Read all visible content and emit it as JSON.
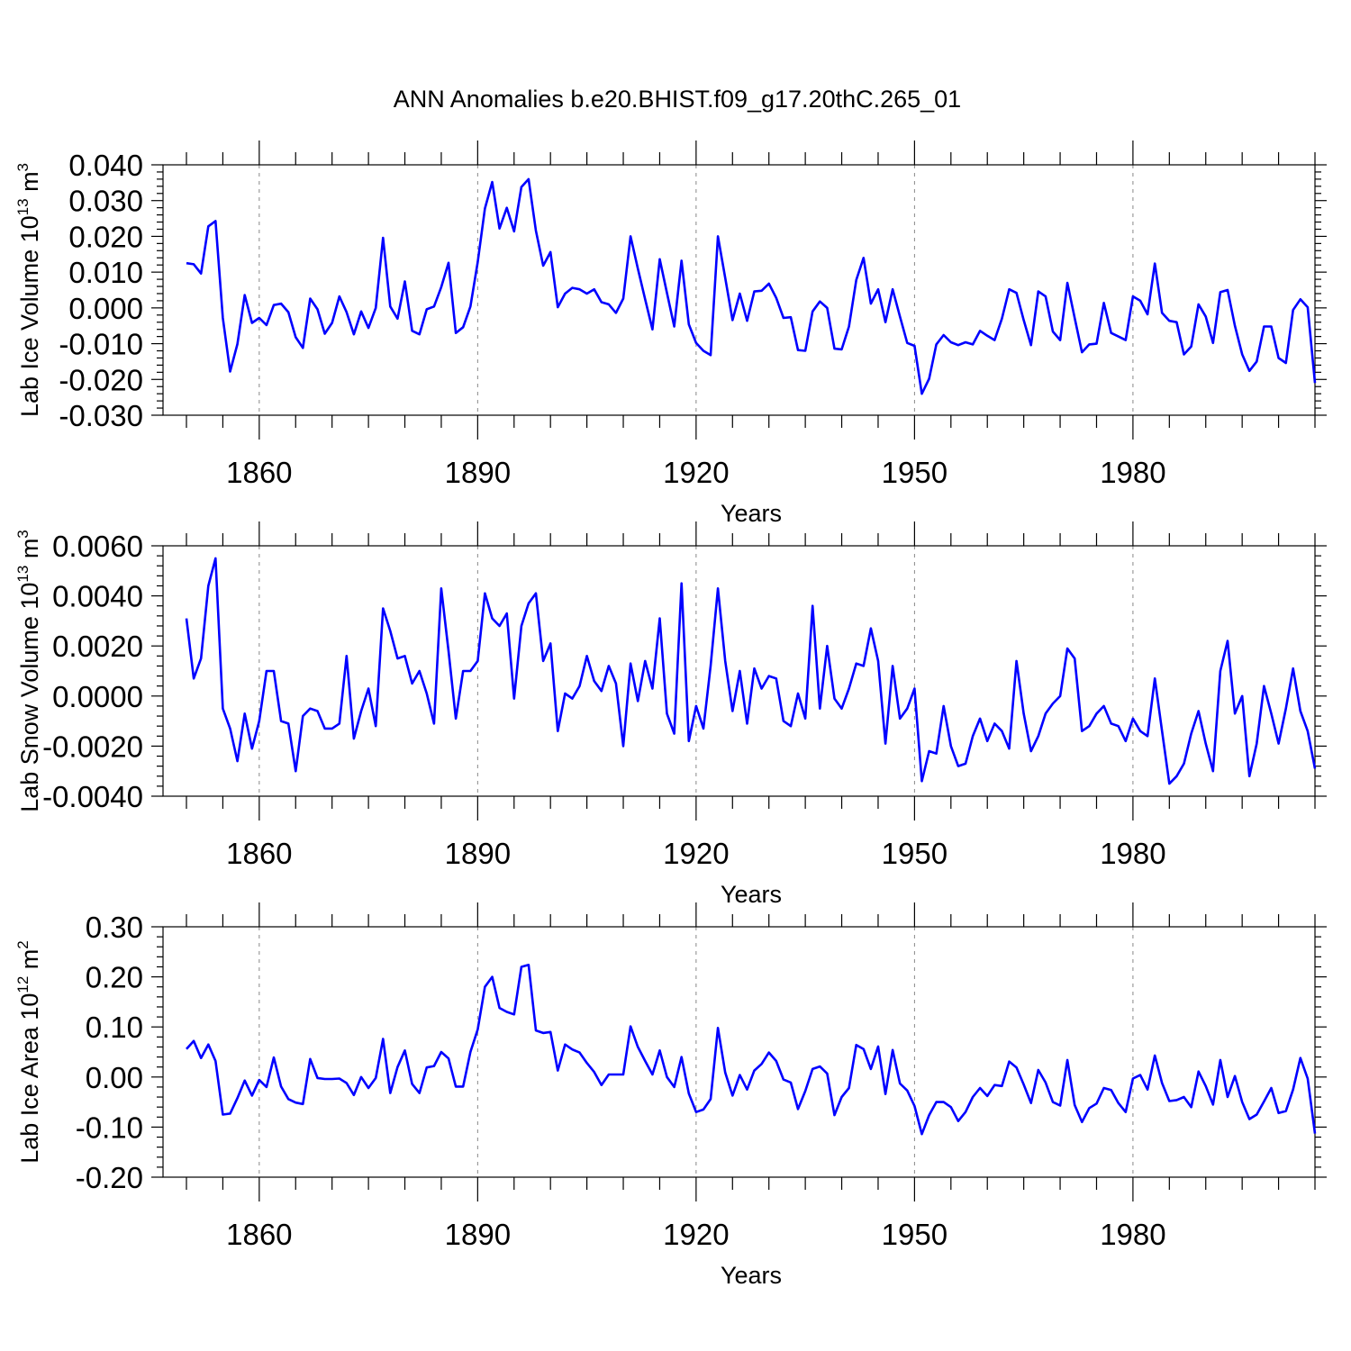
{
  "title": "ANN Anomalies b.e20.BHIST.f09_g17.20thC.265_01",
  "colors": {
    "series": "#0000ff",
    "axes": "#000000",
    "grid": "#888888"
  },
  "chart_data": [
    {
      "type": "line",
      "ylabel": {
        "main": "Lab Ice Volume 10",
        "sup": "13",
        "unit": " m",
        "unit_sup": "3"
      },
      "xlabel": "Years",
      "xlim": [
        1850,
        2005
      ],
      "ylim": [
        -0.03,
        0.04
      ],
      "grid": "dashed vertical at major x ticks",
      "x_start": 1850,
      "x_ticks": [
        1860,
        1890,
        1920,
        1950,
        1980
      ],
      "x_tick_labels": [
        "1860",
        "1890",
        "1920",
        "1950",
        "1980"
      ],
      "y_ticks": [
        -0.03,
        -0.02,
        -0.01,
        0.0,
        0.01,
        0.02,
        0.03,
        0.04
      ],
      "y_tick_labels": [
        "-0.030",
        "-0.020",
        "-0.010",
        "0.000",
        "0.010",
        "0.020",
        "0.030",
        "0.040"
      ],
      "series": [
        {
          "name": "Lab Ice Volume",
          "values": [
            0.0125,
            0.0122,
            0.0096,
            0.0228,
            0.0243,
            -0.0028,
            -0.0178,
            -0.0101,
            0.0036,
            -0.0042,
            -0.0028,
            -0.0048,
            0.0008,
            0.0012,
            -0.0012,
            -0.0082,
            -0.0112,
            0.0026,
            -0.0004,
            -0.0072,
            -0.0042,
            0.0032,
            -0.0012,
            -0.0074,
            -0.001,
            -0.0056,
            0.0,
            0.0196,
            0.0004,
            -0.003,
            0.0074,
            -0.0064,
            -0.0074,
            -0.0004,
            0.0004,
            0.0058,
            0.0126,
            -0.007,
            -0.0054,
            0.0004,
            0.0128,
            0.0278,
            0.0352,
            0.0222,
            0.028,
            0.0214,
            0.0338,
            0.036,
            0.0216,
            0.0118,
            0.0156,
            0.0002,
            0.004,
            0.0056,
            0.0052,
            0.004,
            0.0052,
            0.0016,
            0.001,
            -0.0014,
            0.0026,
            0.02,
            0.011,
            0.0024,
            -0.006,
            0.0136,
            0.0042,
            -0.0052,
            0.0132,
            -0.0046,
            -0.0098,
            -0.012,
            -0.0132,
            0.02,
            0.0084,
            -0.0034,
            0.004,
            -0.0036,
            0.0046,
            0.0048,
            0.0068,
            0.0028,
            -0.0028,
            -0.0026,
            -0.0118,
            -0.012,
            -0.001,
            0.0018,
            0.0,
            -0.0114,
            -0.0116,
            -0.0052,
            0.0078,
            0.014,
            0.0012,
            0.0052,
            -0.004,
            0.0052,
            -0.0024,
            -0.0098,
            -0.0106,
            -0.024,
            -0.0198,
            -0.0102,
            -0.0076,
            -0.0096,
            -0.0104,
            -0.0096,
            -0.0102,
            -0.0064,
            -0.0078,
            -0.009,
            -0.003,
            0.0052,
            0.0042,
            -0.0034,
            -0.0104,
            0.0046,
            0.0032,
            -0.0066,
            -0.009,
            0.007,
            -0.0028,
            -0.0124,
            -0.0102,
            -0.01,
            0.0014,
            -0.007,
            -0.008,
            -0.009,
            0.0032,
            0.002,
            -0.0018,
            0.0124,
            -0.0014,
            -0.0036,
            -0.004,
            -0.013,
            -0.0108,
            0.001,
            -0.0024,
            -0.0098,
            0.0044,
            0.005,
            -0.005,
            -0.013,
            -0.0176,
            -0.015,
            -0.0052,
            -0.0052,
            -0.014,
            -0.0154,
            -0.0006,
            0.0024,
            0.0002,
            -0.021
          ]
        }
      ]
    },
    {
      "type": "line",
      "ylabel": {
        "main": "Lab Snow Volume 10",
        "sup": "13",
        "unit": " m",
        "unit_sup": "3"
      },
      "xlabel": "Years",
      "xlim": [
        1850,
        2005
      ],
      "ylim": [
        -0.004,
        0.006
      ],
      "grid": "dashed vertical at major x ticks",
      "x_start": 1850,
      "x_ticks": [
        1860,
        1890,
        1920,
        1950,
        1980
      ],
      "x_tick_labels": [
        "1860",
        "1890",
        "1920",
        "1950",
        "1980"
      ],
      "y_ticks": [
        -0.004,
        -0.002,
        0.0,
        0.002,
        0.004,
        0.006
      ],
      "y_tick_labels": [
        "-0.0040",
        "-0.0020",
        "0.0000",
        "0.0020",
        "0.0040",
        "0.0060"
      ],
      "series": [
        {
          "name": "Lab Snow Volume",
          "values": [
            0.0031,
            0.0007,
            0.0015,
            0.0044,
            0.0055,
            -0.0005,
            -0.0013,
            -0.0026,
            -0.0007,
            -0.0021,
            -0.001,
            0.001,
            0.001,
            -0.001,
            -0.0011,
            -0.003,
            -0.0008,
            -0.0005,
            -0.0006,
            -0.0013,
            -0.0013,
            -0.0011,
            0.0016,
            -0.0017,
            -0.0006,
            0.0003,
            -0.0012,
            0.0035,
            0.0026,
            0.0015,
            0.0016,
            0.0005,
            0.001,
            0.0001,
            -0.0011,
            0.0043,
            0.0018,
            -0.0009,
            0.001,
            0.001,
            0.0014,
            0.0041,
            0.0031,
            0.0028,
            0.0033,
            -0.0001,
            0.0028,
            0.0037,
            0.0041,
            0.0014,
            0.0021,
            -0.0014,
            0.0001,
            -0.0001,
            0.0004,
            0.0016,
            0.0006,
            0.0002,
            0.0012,
            0.0005,
            -0.002,
            0.0013,
            -0.0002,
            0.0014,
            0.0003,
            0.0031,
            -0.0007,
            -0.0015,
            0.0045,
            -0.0018,
            -0.0004,
            -0.0013,
            0.0012,
            0.0043,
            0.0014,
            -0.0006,
            0.001,
            -0.0011,
            0.0011,
            0.0003,
            0.0008,
            0.0007,
            -0.001,
            -0.0012,
            0.0001,
            -0.0009,
            0.0036,
            -0.0005,
            0.002,
            -0.0001,
            -0.0005,
            0.0003,
            0.0013,
            0.0012,
            0.0027,
            0.0014,
            -0.0019,
            0.0012,
            -0.0009,
            -0.0005,
            0.0003,
            -0.0034,
            -0.0022,
            -0.0023,
            -0.0004,
            -0.002,
            -0.0028,
            -0.0027,
            -0.0016,
            -0.0009,
            -0.0018,
            -0.0011,
            -0.0014,
            -0.0021,
            0.0014,
            -0.0007,
            -0.0022,
            -0.0016,
            -0.0007,
            -0.0003,
            0.0,
            0.0019,
            0.0015,
            -0.0014,
            -0.0012,
            -0.0007,
            -0.0004,
            -0.0011,
            -0.0012,
            -0.0018,
            -0.0009,
            -0.0014,
            -0.0016,
            0.0007,
            -0.0014,
            -0.0035,
            -0.0032,
            -0.0027,
            -0.0015,
            -0.0006,
            -0.0019,
            -0.003,
            0.001,
            0.0022,
            -0.0007,
            0.0,
            -0.0032,
            -0.0019,
            0.0004,
            -0.0007,
            -0.0019,
            -0.0005,
            0.0011,
            -0.0006,
            -0.0014,
            -0.0029
          ]
        }
      ]
    },
    {
      "type": "line",
      "ylabel": {
        "main": "Lab Ice Area 10",
        "sup": "12",
        "unit": " m",
        "unit_sup": "2"
      },
      "xlabel": "Years",
      "xlim": [
        1850,
        2005
      ],
      "ylim": [
        -0.2,
        0.3
      ],
      "grid": "dashed vertical at major x ticks",
      "x_start": 1850,
      "x_ticks": [
        1860,
        1890,
        1920,
        1950,
        1980
      ],
      "x_tick_labels": [
        "1860",
        "1890",
        "1920",
        "1950",
        "1980"
      ],
      "y_ticks": [
        -0.2,
        -0.1,
        0.0,
        0.1,
        0.2,
        0.3
      ],
      "y_tick_labels": [
        "-0.20",
        "-0.10",
        "0.00",
        "0.10",
        "0.20",
        "0.30"
      ],
      "series": [
        {
          "name": "Lab Ice Area",
          "values": [
            0.056,
            0.072,
            0.038,
            0.065,
            0.032,
            -0.075,
            -0.073,
            -0.042,
            -0.007,
            -0.037,
            -0.006,
            -0.02,
            0.039,
            -0.019,
            -0.044,
            -0.051,
            -0.054,
            0.036,
            -0.002,
            -0.004,
            -0.004,
            -0.003,
            -0.012,
            -0.036,
            0.0,
            -0.022,
            -0.002,
            0.076,
            -0.032,
            0.02,
            0.053,
            -0.014,
            -0.032,
            0.019,
            0.022,
            0.05,
            0.037,
            -0.019,
            -0.019,
            0.05,
            0.095,
            0.18,
            0.2,
            0.138,
            0.13,
            0.125,
            0.22,
            0.224,
            0.093,
            0.088,
            0.09,
            0.013,
            0.065,
            0.055,
            0.049,
            0.028,
            0.01,
            -0.016,
            0.005,
            0.005,
            0.005,
            0.101,
            0.06,
            0.032,
            0.005,
            0.053,
            0.0,
            -0.02,
            0.04,
            -0.033,
            -0.07,
            -0.065,
            -0.044,
            0.098,
            0.009,
            -0.037,
            0.004,
            -0.025,
            0.013,
            0.026,
            0.049,
            0.032,
            -0.005,
            -0.011,
            -0.064,
            -0.028,
            0.016,
            0.021,
            0.007,
            -0.076,
            -0.04,
            -0.022,
            0.064,
            0.056,
            0.016,
            0.061,
            -0.034,
            0.054,
            -0.013,
            -0.027,
            -0.058,
            -0.114,
            -0.076,
            -0.05,
            -0.05,
            -0.06,
            -0.088,
            -0.07,
            -0.04,
            -0.022,
            -0.038,
            -0.016,
            -0.018,
            0.031,
            0.019,
            -0.015,
            -0.052,
            0.014,
            -0.011,
            -0.05,
            -0.057,
            0.034,
            -0.056,
            -0.09,
            -0.062,
            -0.053,
            -0.022,
            -0.026,
            -0.052,
            -0.07,
            -0.003,
            0.004,
            -0.025,
            0.043,
            -0.012,
            -0.048,
            -0.046,
            -0.04,
            -0.06,
            0.011,
            -0.018,
            -0.055,
            0.034,
            -0.04,
            0.002,
            -0.05,
            -0.084,
            -0.075,
            -0.049,
            -0.022,
            -0.072,
            -0.068,
            -0.025,
            0.038,
            -0.003,
            -0.113
          ]
        }
      ]
    }
  ]
}
